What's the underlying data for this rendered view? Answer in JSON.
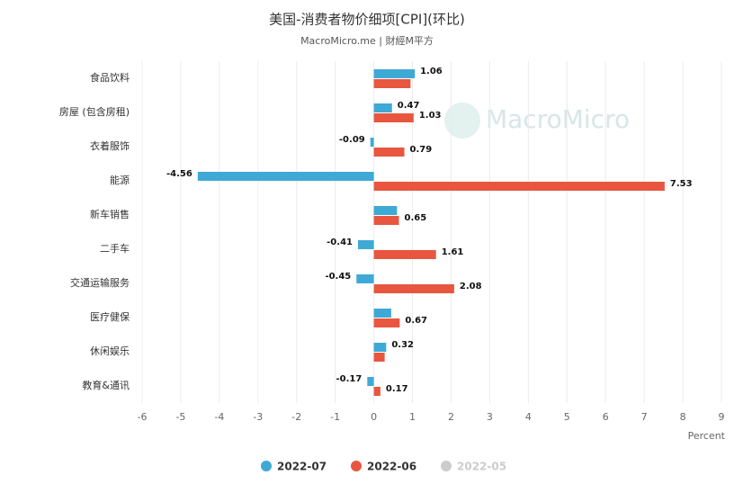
{
  "chart_data": {
    "type": "hbar",
    "title": "美国-消费者物价细项[CPI](环比)",
    "subtitle": "MacroMicro.me | 財經M平方",
    "watermark": "MacroMicro",
    "x_label": "Percent",
    "categories": [
      "食品饮料",
      "房屋 (包含房租)",
      "衣着服饰",
      "能源",
      "新车销售",
      "二手车",
      "交通运输服务",
      "医疗健保",
      "休闲娱乐",
      "教育&通讯"
    ],
    "series": [
      {
        "name": "2022-07",
        "color": "#3fa9d6",
        "visible": true,
        "values": [
          1.06,
          0.47,
          -0.09,
          -4.56,
          0.6,
          -0.41,
          -0.45,
          0.45,
          0.32,
          -0.17
        ],
        "value_labels": [
          "1.06",
          "0.47",
          "-0.09",
          "-4.56",
          null,
          "-0.41",
          "-0.45",
          null,
          "0.32",
          "-0.17"
        ]
      },
      {
        "name": "2022-06",
        "color": "#e8563f",
        "visible": true,
        "values": [
          0.95,
          1.03,
          0.79,
          7.53,
          0.65,
          1.61,
          2.08,
          0.67,
          0.28,
          0.17
        ],
        "value_labels": [
          null,
          "1.03",
          "0.79",
          "7.53",
          "0.65",
          "1.61",
          "2.08",
          "0.67",
          null,
          "0.17"
        ]
      },
      {
        "name": "2022-05",
        "color": "#cccccc",
        "visible": false,
        "values": [
          null,
          null,
          null,
          null,
          null,
          null,
          null,
          null,
          null,
          null
        ],
        "value_labels": [
          null,
          null,
          null,
          null,
          null,
          null,
          null,
          null,
          null,
          null
        ]
      }
    ],
    "xlim": [
      -6,
      9
    ],
    "xticks": [
      -6,
      -5,
      -4,
      -3,
      -2,
      -1,
      0,
      1,
      2,
      3,
      4,
      5,
      6,
      7,
      8,
      9
    ],
    "grid": true,
    "legend": "bottom"
  }
}
